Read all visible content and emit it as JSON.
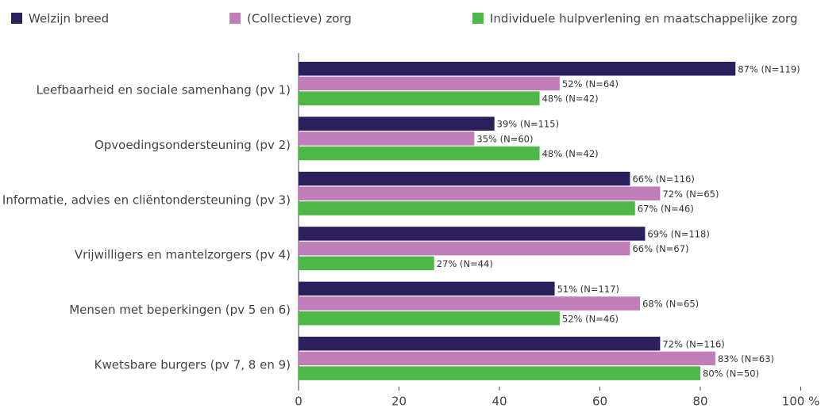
{
  "chart_data": {
    "type": "hbar",
    "categories": [
      "Leefbaarheid en sociale samenhang (pv 1)",
      "Opvoedingsondersteuning (pv 2)",
      "Informatie, advies en cliëntondersteuning (pv 3)",
      "Vrijwilligers en mantelzorgers (pv 4)",
      "Mensen met beperkingen (pv 5 en 6)",
      "Kwetsbare burgers (pv 7, 8 en 9)"
    ],
    "series": [
      {
        "name": "Welzijn breed",
        "color": "#2b1f5c",
        "values": [
          87,
          39,
          66,
          69,
          51,
          72
        ],
        "value_labels": [
          "87% (N=119)",
          "39% (N=115)",
          "66% (N=116)",
          "69% (N=118)",
          "51% (N=117)",
          "72% (N=116)"
        ]
      },
      {
        "name": "(Collectieve) zorg",
        "color": "#c17fb9",
        "values": [
          52,
          35,
          72,
          66,
          68,
          83
        ],
        "value_labels": [
          "52% (N=64)",
          "35% (N=60)",
          "72% (N=65)",
          "66% (N=67)",
          "68% (N=65)",
          "83% (N=63)"
        ]
      },
      {
        "name": "Individuele hulpverlening en maatschappelijke zorg",
        "color": "#4db848",
        "values": [
          48,
          48,
          67,
          27,
          52,
          80
        ],
        "value_labels": [
          "48% (N=42)",
          "48% (N=42)",
          "67% (N=46)",
          "27% (N=44)",
          "52% (N=46)",
          "80% (N=50)"
        ]
      }
    ],
    "xlim": [
      0,
      100
    ],
    "xticks": [
      0,
      20,
      40,
      60,
      80,
      {
        "value": 100,
        "label": "100 %"
      }
    ],
    "legend": "top"
  }
}
